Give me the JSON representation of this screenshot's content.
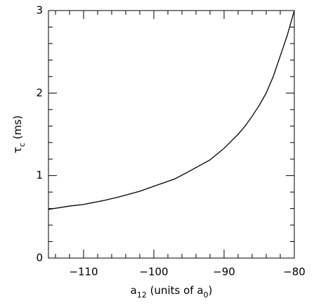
{
  "chart_data": {
    "type": "line",
    "xlabel_parts": [
      "a",
      "12",
      " (units of a",
      "0",
      ")"
    ],
    "ylabel_parts": [
      "τ",
      "c",
      " (ms)"
    ],
    "x": [
      -115,
      -112,
      -110,
      -107,
      -105,
      -102,
      -100,
      -97,
      -95,
      -92,
      -90,
      -88,
      -87,
      -86,
      -85,
      -84,
      -83,
      -82,
      -81,
      -80.5,
      -80
    ],
    "values": [
      0.59,
      0.63,
      0.65,
      0.7,
      0.74,
      0.81,
      0.87,
      0.96,
      1.05,
      1.19,
      1.33,
      1.5,
      1.6,
      1.72,
      1.85,
      2.0,
      2.2,
      2.45,
      2.7,
      2.85,
      3.0
    ],
    "color": "#000000",
    "xlim": [
      -115,
      -80
    ],
    "ylim": [
      0,
      3
    ],
    "xticks": [
      {
        "value": -110,
        "label": "−110"
      },
      {
        "value": -100,
        "label": "−100"
      },
      {
        "value": -90,
        "label": "−90"
      },
      {
        "value": -80,
        "label": "−80"
      }
    ],
    "yticks": [
      0,
      1,
      2,
      3
    ],
    "xminor": [
      -114,
      -112,
      -108,
      -106,
      -104,
      -102,
      -98,
      -96,
      -94,
      -92,
      -88,
      -86,
      -84,
      -82
    ],
    "yminor": [
      0.2,
      0.4,
      0.6,
      0.8,
      1.2,
      1.4,
      1.6,
      1.8,
      2.2,
      2.4,
      2.6,
      2.8
    ],
    "grid": false
  }
}
